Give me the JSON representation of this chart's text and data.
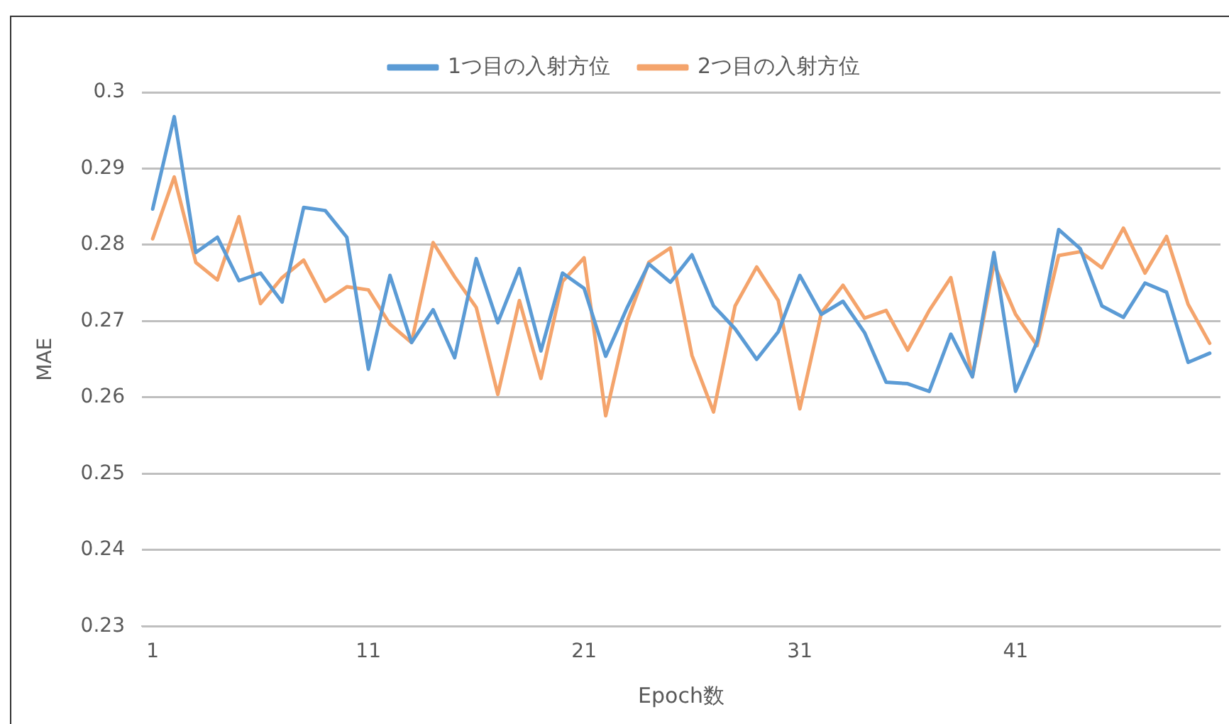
{
  "chart_data": {
    "type": "line",
    "xlabel": "Epoch数",
    "ylabel": "MAE",
    "categories": [
      "1",
      null,
      null,
      null,
      null,
      null,
      null,
      null,
      null,
      null,
      "11",
      null,
      null,
      null,
      null,
      null,
      null,
      null,
      null,
      null,
      "21",
      null,
      null,
      null,
      null,
      null,
      null,
      null,
      null,
      null,
      "31",
      null,
      null,
      null,
      null,
      null,
      null,
      null,
      null,
      null,
      "41",
      null,
      null,
      null,
      null,
      null,
      null,
      null,
      null,
      null
    ],
    "series": [
      {
        "name": "1つ目の入射方位",
        "color": "#5b9bd5",
        "values": [
          0.2847,
          0.2968,
          0.279,
          0.281,
          0.2753,
          0.2763,
          0.2725,
          0.2849,
          0.2845,
          0.281,
          0.2637,
          0.276,
          0.2672,
          0.2715,
          0.2652,
          0.2782,
          0.2698,
          0.2769,
          0.2661,
          0.2763,
          0.2743,
          0.2654,
          0.2718,
          0.2775,
          0.2751,
          0.2787,
          0.272,
          0.269,
          0.265,
          0.2686,
          0.276,
          0.2709,
          0.2726,
          0.2685,
          0.262,
          0.2618,
          0.2608,
          0.2683,
          0.2627,
          0.279,
          0.2608,
          0.2673,
          0.282,
          0.2795,
          0.272,
          0.2705,
          0.275,
          0.2738,
          0.2646,
          0.2658
        ]
      },
      {
        "name": "2つ目の入射方位",
        "color": "#f4a46c",
        "values": [
          0.2808,
          0.2889,
          0.2777,
          0.2754,
          0.2837,
          0.2723,
          0.2757,
          0.278,
          0.2726,
          0.2745,
          0.2741,
          0.2696,
          0.2672,
          0.2803,
          0.2758,
          0.2718,
          0.2604,
          0.2727,
          0.2625,
          0.2752,
          0.2783,
          0.2576,
          0.27,
          0.2777,
          0.2796,
          0.2655,
          0.2581,
          0.272,
          0.2771,
          0.2727,
          0.2585,
          0.2711,
          0.2747,
          0.2704,
          0.2714,
          0.2662,
          0.2714,
          0.2757,
          0.2627,
          0.2775,
          0.2709,
          0.2668,
          0.2786,
          0.2791,
          0.277,
          0.2822,
          0.2763,
          0.2811,
          0.2722,
          0.2671
        ]
      }
    ],
    "ylim": [
      0.23,
      0.3
    ],
    "yticks": [
      0.23,
      0.24,
      0.25,
      0.26,
      0.27,
      0.28,
      0.29,
      0.3
    ],
    "grid": "y",
    "legend": "top",
    "marker": "none",
    "line_style": "solid"
  }
}
